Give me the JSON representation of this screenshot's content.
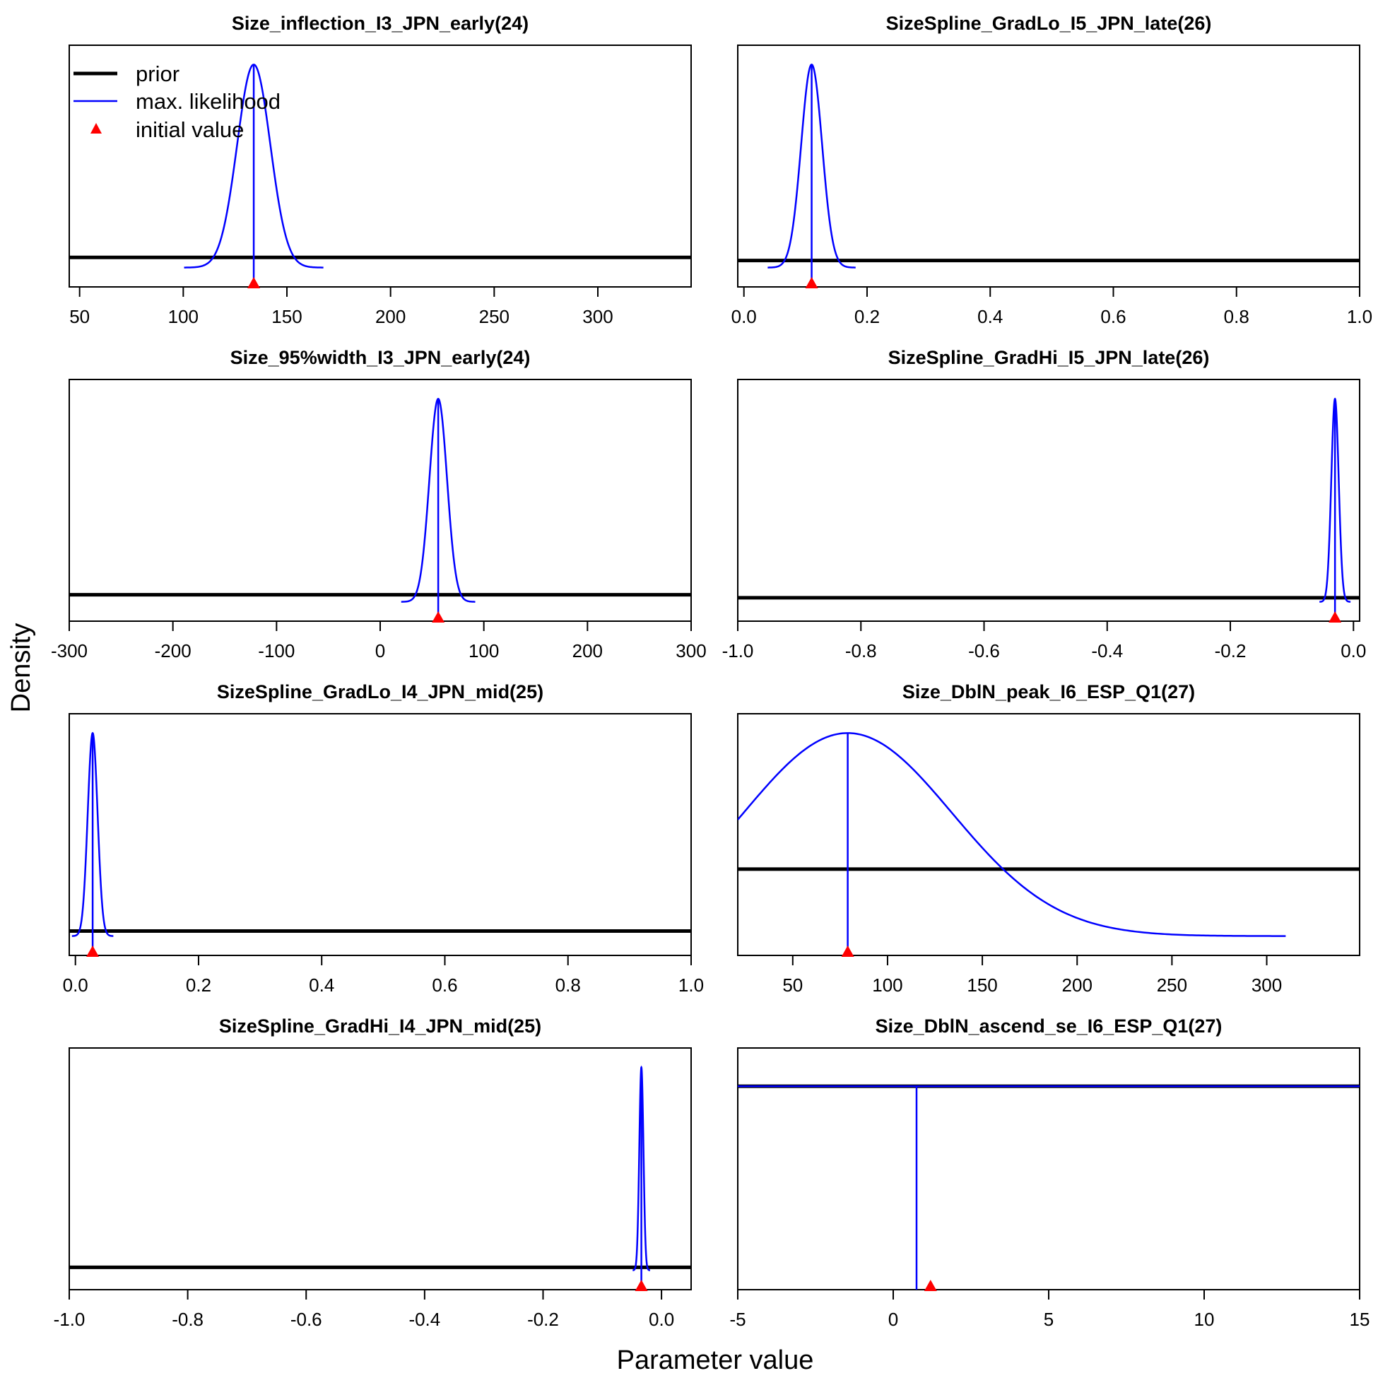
{
  "figure": {
    "xlabel": "Parameter value",
    "ylabel": "Density"
  },
  "legend": {
    "placement": "top-left of first panel",
    "items": [
      {
        "label": "prior",
        "color": "#000000",
        "kind": "thick-line"
      },
      {
        "label": "max. likelihood",
        "color": "#0000ff",
        "kind": "line"
      },
      {
        "label": "initial value",
        "color": "#ff0000",
        "kind": "triangle"
      }
    ]
  },
  "colors": {
    "prior": "#000000",
    "mle": "#0000ff",
    "initial": "#ff0000"
  },
  "chart_data": [
    {
      "type": "line",
      "title": "Size_inflection_I3_JPN_early(24)",
      "xlim": [
        45,
        345
      ],
      "xticks": [
        50,
        100,
        150,
        200,
        250,
        300
      ],
      "xtick_labels": [
        "50",
        "100",
        "150",
        "200",
        "250",
        "300"
      ],
      "prior_level": 0.05,
      "mle": {
        "mean": 134,
        "sd": 8
      },
      "initial_value": 134
    },
    {
      "type": "line",
      "title": "SizeSpline_GradLo_I5_JPN_late(26)",
      "xlim": [
        -0.01,
        1.0
      ],
      "xticks": [
        0.0,
        0.2,
        0.4,
        0.6,
        0.8,
        1.0
      ],
      "xtick_labels": [
        "0.0",
        "0.2",
        "0.4",
        "0.6",
        "0.8",
        "1.0"
      ],
      "prior_level": 0.035,
      "mle": {
        "mean": 0.11,
        "sd": 0.017
      },
      "initial_value": 0.11
    },
    {
      "type": "line",
      "title": "Size_95%width_I3_JPN_early(24)",
      "xlim": [
        -300,
        300
      ],
      "xticks": [
        -300,
        -200,
        -100,
        0,
        100,
        200,
        300
      ],
      "xtick_labels": [
        "-300",
        "-200",
        "-100",
        "0",
        "100",
        "200",
        "300"
      ],
      "prior_level": 0.035,
      "mle": {
        "mean": 56,
        "sd": 8.5
      },
      "initial_value": 56
    },
    {
      "type": "line",
      "title": "SizeSpline_GradHi_I5_JPN_late(26)",
      "xlim": [
        -1.0,
        0.01
      ],
      "xticks": [
        -1.0,
        -0.8,
        -0.6,
        -0.4,
        -0.2,
        0.0
      ],
      "xtick_labels": [
        "-1.0",
        "-0.8",
        "-0.6",
        "-0.4",
        "-0.2",
        "0.0"
      ],
      "prior_level": 0.02,
      "mle": {
        "mean": -0.03,
        "sd": 0.006
      },
      "initial_value": -0.03
    },
    {
      "type": "line",
      "title": "SizeSpline_GradLo_I4_JPN_mid(25)",
      "xlim": [
        -0.01,
        1.0
      ],
      "xticks": [
        0.0,
        0.2,
        0.4,
        0.6,
        0.8,
        1.0
      ],
      "xtick_labels": [
        "0.0",
        "0.2",
        "0.4",
        "0.6",
        "0.8",
        "1.0"
      ],
      "prior_level": 0.025,
      "mle": {
        "mean": 0.028,
        "sd": 0.008
      },
      "initial_value": 0.028
    },
    {
      "type": "line",
      "title": "Size_DblN_peak_I6_ESP_Q1(27)",
      "xlim": [
        21,
        349
      ],
      "xticks": [
        50,
        100,
        150,
        200,
        250,
        300
      ],
      "xtick_labels": [
        "50",
        "100",
        "150",
        "200",
        "250",
        "300"
      ],
      "prior_level": 0.33,
      "mle": {
        "mean": 79,
        "sd": 55
      },
      "initial_value": 79
    },
    {
      "type": "line",
      "title": "SizeSpline_GradHi_I4_JPN_mid(25)",
      "xlim": [
        -1.0,
        0.05
      ],
      "xticks": [
        -1.0,
        -0.8,
        -0.6,
        -0.4,
        -0.2,
        0.0
      ],
      "xtick_labels": [
        "-1.0",
        "-0.8",
        "-0.6",
        "-0.4",
        "-0.2",
        "0.0"
      ],
      "prior_level": 0.015,
      "mle": {
        "mean": -0.034,
        "sd": 0.0035
      },
      "initial_value": -0.034
    },
    {
      "type": "line",
      "title": "Size_DblN_ascend_se_I6_ESP_Q1(27)",
      "xlim": [
        -5,
        15
      ],
      "xticks": [
        -5,
        0,
        5,
        10,
        15
      ],
      "xtick_labels": [
        "-5",
        "0",
        "5",
        "10",
        "15"
      ],
      "prior_level": 0.907,
      "mle_flat_level": 0.907,
      "mle_line_x": 0.75,
      "initial_value": 1.2
    }
  ]
}
